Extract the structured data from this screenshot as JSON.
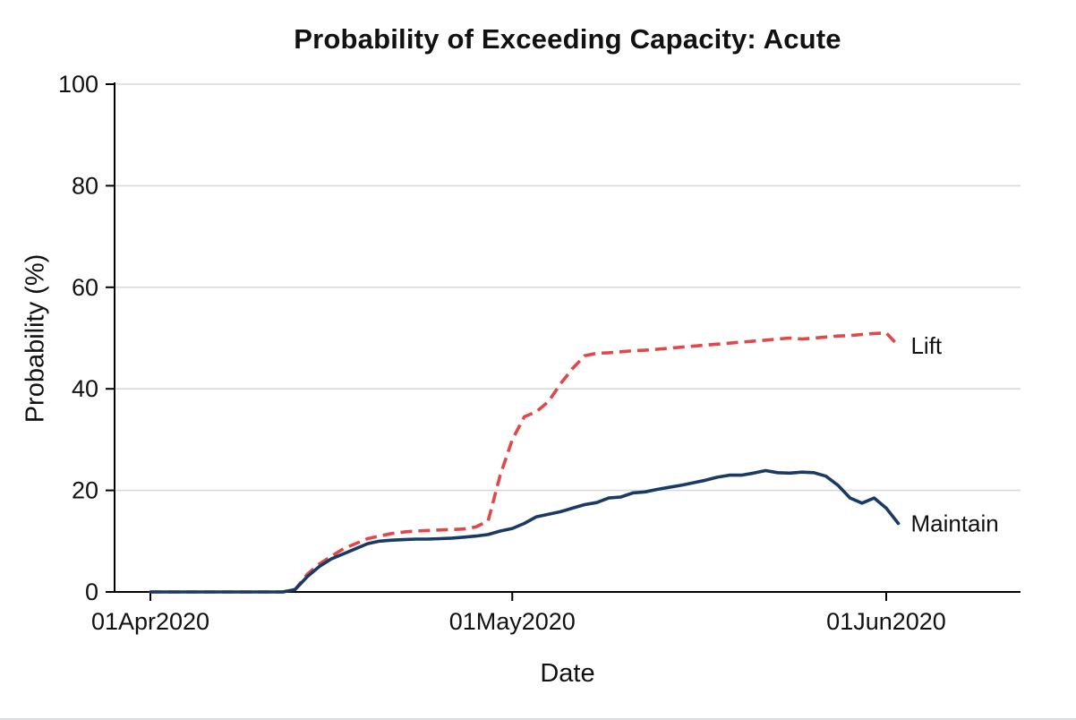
{
  "chart_data": {
    "type": "line",
    "title": "Probability of Exceeding Capacity: Acute",
    "xlabel": "Date",
    "ylabel": "Probability (%)",
    "ylim": [
      0,
      100
    ],
    "grid": "horizontal",
    "grid_color": "#d9d9d9",
    "axis_color": "#000000",
    "y_ticks": [
      0,
      20,
      40,
      60,
      80,
      100
    ],
    "x_unit": "days since 01Apr2020 (one value per day)",
    "x_ticks": [
      {
        "label": "01Apr2020",
        "day": 0
      },
      {
        "label": "01May2020",
        "day": 30
      },
      {
        "label": "01Jun2020",
        "day": 61
      }
    ],
    "legend_position": "line-end-labels",
    "series": [
      {
        "name": "Lift",
        "color": "#e2484a",
        "style": "dashed",
        "values": [
          0,
          0,
          0,
          0,
          0,
          0,
          0,
          0,
          0,
          0,
          0,
          0,
          0.5,
          3.5,
          5.5,
          7,
          8.5,
          9.5,
          10.5,
          11,
          11.5,
          11.8,
          12,
          12.1,
          12.2,
          12.3,
          12.4,
          12.8,
          14,
          23,
          30,
          34.5,
          35.5,
          37.5,
          41,
          44,
          46.5,
          47,
          47.1,
          47.3,
          47.5,
          47.6,
          47.8,
          48,
          48.2,
          48.4,
          48.6,
          48.8,
          49,
          49.2,
          49.4,
          49.6,
          49.8,
          50,
          49.8,
          50,
          50.2,
          50.4,
          50.5,
          50.7,
          50.9,
          51,
          48.5
        ]
      },
      {
        "name": "Maintain",
        "color": "#1a3a66",
        "style": "solid",
        "values": [
          0,
          0,
          0,
          0,
          0,
          0,
          0,
          0,
          0,
          0,
          0,
          0,
          0.5,
          3,
          5,
          6.5,
          7.5,
          8.5,
          9.5,
          10,
          10.2,
          10.3,
          10.4,
          10.4,
          10.5,
          10.6,
          10.8,
          11,
          11.3,
          12,
          12.5,
          13.5,
          14.8,
          15.3,
          15.8,
          16.5,
          17.2,
          17.6,
          18.5,
          18.7,
          19.5,
          19.7,
          20.2,
          20.6,
          21,
          21.5,
          22,
          22.6,
          23,
          23,
          23.4,
          23.9,
          23.5,
          23.4,
          23.6,
          23.5,
          22.8,
          21,
          18.5,
          17.5,
          18.5,
          16.5,
          13.5
        ]
      }
    ]
  }
}
